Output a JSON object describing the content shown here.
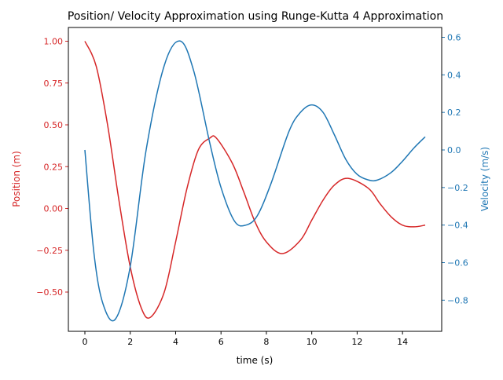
{
  "chart_data": {
    "type": "line",
    "title": "Position/ Velocity Approximation using Runge-Kutta 4 Approximation",
    "xlabel": "time (s)",
    "ylabel_left": "Position (m)",
    "ylabel_right": "Velocity (m/s)",
    "xlim": [
      0,
      15
    ],
    "ylim_left": [
      -0.65,
      1.0
    ],
    "ylim_right": [
      -0.9,
      0.58
    ],
    "x_ticks": [
      0,
      2,
      4,
      6,
      8,
      10,
      12,
      14
    ],
    "y_left_ticks": [
      -0.5,
      -0.25,
      0.0,
      0.25,
      0.5,
      0.75,
      1.0
    ],
    "y_left_tick_labels": [
      "−0.50",
      "−0.25",
      "0.00",
      "0.25",
      "0.50",
      "0.75",
      "1.00"
    ],
    "y_right_ticks": [
      -0.8,
      -0.6,
      -0.4,
      -0.2,
      0.0,
      0.2,
      0.4,
      0.6
    ],
    "y_right_tick_labels": [
      "−0.8",
      "−0.6",
      "−0.4",
      "−0.2",
      "0.0",
      "0.2",
      "0.4",
      "0.6"
    ],
    "grid": false,
    "colors": {
      "position": "#d62728",
      "velocity": "#1f77b4",
      "axes": "#000000"
    },
    "series": [
      {
        "axis": "left",
        "x": [
          0,
          0.5,
          1,
          1.5,
          2,
          2.5,
          2.9,
          3.5,
          4,
          4.5,
          5,
          5.5,
          5.8,
          6.5,
          7,
          7.5,
          8,
          8.7,
          9.5,
          10,
          10.5,
          11,
          11.6,
          12.5,
          13,
          13.5,
          14,
          14.5,
          15
        ],
        "y": [
          1.0,
          0.85,
          0.5,
          0.05,
          -0.35,
          -0.6,
          -0.65,
          -0.5,
          -0.2,
          0.12,
          0.35,
          0.42,
          0.42,
          0.27,
          0.1,
          -0.08,
          -0.2,
          -0.27,
          -0.19,
          -0.07,
          0.05,
          0.14,
          0.18,
          0.12,
          0.03,
          -0.05,
          -0.1,
          -0.11,
          -0.1
        ]
      },
      {
        "axis": "right",
        "x": [
          0,
          0.4,
          0.8,
          1.35,
          2,
          2.7,
          3.5,
          4.2,
          4.8,
          5.5,
          6,
          6.6,
          7.1,
          7.6,
          8.2,
          9,
          9.5,
          10,
          10.5,
          11,
          11.5,
          12,
          12.5,
          12.9,
          13.5,
          14,
          14.5,
          15
        ],
        "y": [
          0.0,
          -0.55,
          -0.82,
          -0.9,
          -0.62,
          0.0,
          0.45,
          0.58,
          0.42,
          0.04,
          -0.2,
          -0.38,
          -0.4,
          -0.35,
          -0.18,
          0.1,
          0.2,
          0.24,
          0.2,
          0.08,
          -0.05,
          -0.13,
          -0.16,
          -0.16,
          -0.12,
          -0.06,
          0.01,
          0.07
        ]
      }
    ]
  }
}
